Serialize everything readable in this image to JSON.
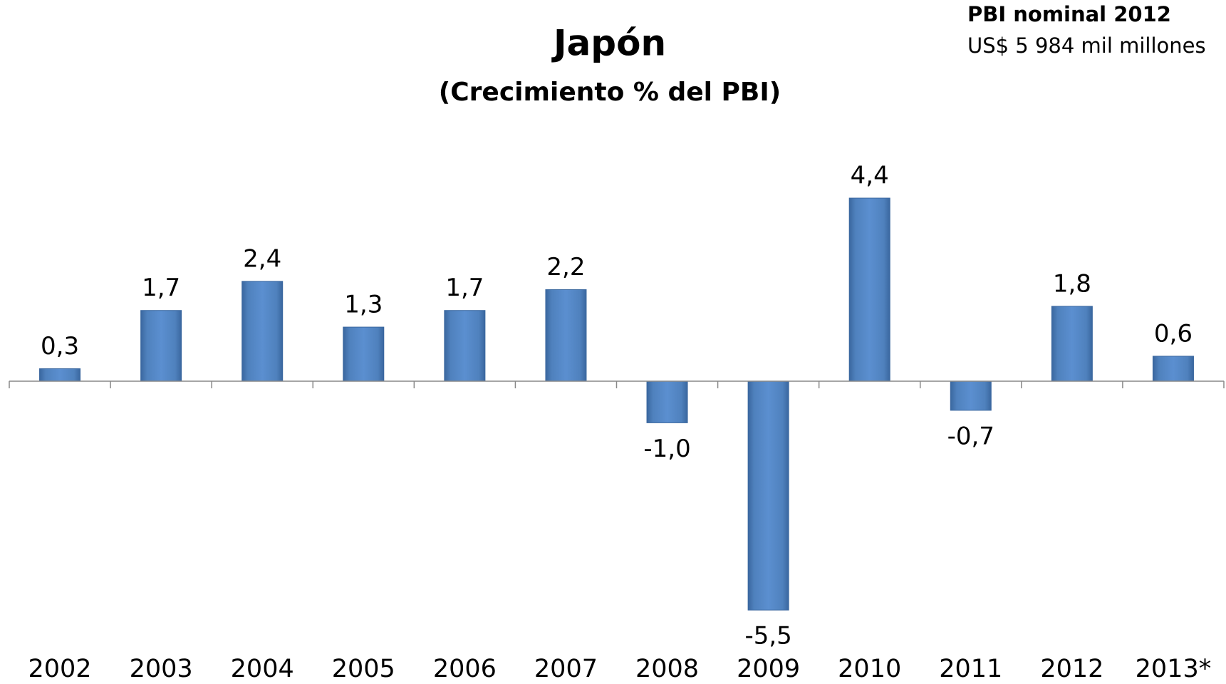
{
  "chart_data": {
    "type": "bar",
    "title": "Japón",
    "subtitle": "(Crecimiento % del PBI)",
    "annotations": [
      "PBI nominal 2012",
      "US$ 5 984 mil millones"
    ],
    "categories": [
      "2002",
      "2003",
      "2004",
      "2005",
      "2006",
      "2007",
      "2008",
      "2009",
      "2010",
      "2011",
      "2012",
      "2013*"
    ],
    "values": [
      0.3,
      1.7,
      2.4,
      1.3,
      1.7,
      2.2,
      -1.0,
      -5.5,
      4.4,
      -0.7,
      1.8,
      0.6
    ],
    "value_labels": [
      "0,3",
      "1,7",
      "2,4",
      "1,3",
      "1,7",
      "2,2",
      "-1,0",
      "-5,5",
      "4,4",
      "-0,7",
      "1,8",
      "0,6"
    ],
    "color": "#4f81bd"
  }
}
